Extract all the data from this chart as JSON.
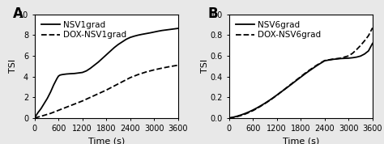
{
  "panel_A": {
    "label": "A",
    "xlabel": "Time (s)",
    "ylabel": "TSI",
    "xlim": [
      0,
      3600
    ],
    "ylim": [
      0,
      10
    ],
    "xticks": [
      0,
      600,
      1200,
      1800,
      2400,
      3000,
      3600
    ],
    "yticks": [
      0,
      2,
      4,
      6,
      8,
      10
    ],
    "legend": [
      "NSV1grad",
      "DOX-NSV1grad"
    ],
    "nsv1grad_x": [
      0,
      80,
      160,
      240,
      320,
      400,
      480,
      560,
      600,
      640,
      700,
      800,
      900,
      1000,
      1100,
      1200,
      1300,
      1400,
      1500,
      1600,
      1700,
      1800,
      1900,
      2000,
      2100,
      2200,
      2300,
      2400,
      2500,
      2600,
      2700,
      2800,
      2900,
      3000,
      3100,
      3200,
      3300,
      3400,
      3500,
      3600
    ],
    "nsv1grad_y": [
      0,
      0.5,
      0.9,
      1.4,
      1.9,
      2.5,
      3.2,
      3.8,
      4.05,
      4.15,
      4.2,
      4.25,
      4.28,
      4.3,
      4.35,
      4.4,
      4.55,
      4.8,
      5.1,
      5.4,
      5.75,
      6.1,
      6.45,
      6.8,
      7.1,
      7.35,
      7.6,
      7.78,
      7.9,
      8.0,
      8.08,
      8.15,
      8.22,
      8.3,
      8.38,
      8.45,
      8.5,
      8.55,
      8.6,
      8.65
    ],
    "dox_nsv1grad_x": [
      0,
      200,
      400,
      600,
      800,
      1000,
      1200,
      1400,
      1600,
      1800,
      2000,
      2200,
      2400,
      2600,
      2800,
      3000,
      3200,
      3400,
      3600
    ],
    "dox_nsv1grad_y": [
      0,
      0.22,
      0.45,
      0.75,
      1.05,
      1.35,
      1.65,
      2.0,
      2.35,
      2.7,
      3.1,
      3.5,
      3.9,
      4.2,
      4.45,
      4.65,
      4.82,
      4.97,
      5.1
    ]
  },
  "panel_B": {
    "label": "B",
    "xlabel": "Time (s)",
    "ylabel": "TSI",
    "xlim": [
      0,
      3600
    ],
    "ylim": [
      0,
      1.0
    ],
    "xticks": [
      0,
      600,
      1200,
      1800,
      2400,
      3000,
      3600
    ],
    "yticks": [
      0.0,
      0.2,
      0.4,
      0.6,
      0.8,
      1.0
    ],
    "legend": [
      "NSV6grad",
      "DOX-NSV6grad"
    ],
    "nsv6grad_x": [
      0,
      100,
      200,
      300,
      400,
      500,
      600,
      700,
      800,
      900,
      1000,
      1100,
      1200,
      1300,
      1400,
      1500,
      1600,
      1700,
      1800,
      1900,
      2000,
      2200,
      2400,
      2600,
      2800,
      3000,
      3100,
      3200,
      3300,
      3400,
      3500,
      3600
    ],
    "nsv6grad_y": [
      0,
      0.008,
      0.018,
      0.03,
      0.044,
      0.06,
      0.078,
      0.098,
      0.12,
      0.143,
      0.168,
      0.194,
      0.222,
      0.25,
      0.278,
      0.307,
      0.336,
      0.366,
      0.395,
      0.424,
      0.452,
      0.505,
      0.553,
      0.566,
      0.574,
      0.578,
      0.582,
      0.588,
      0.598,
      0.618,
      0.648,
      0.72
    ],
    "dox_nsv6grad_x": [
      0,
      100,
      200,
      300,
      400,
      500,
      600,
      700,
      800,
      900,
      1000,
      1100,
      1200,
      1300,
      1400,
      1500,
      1600,
      1700,
      1800,
      1900,
      2000,
      2200,
      2400,
      2600,
      2800,
      3000,
      3100,
      3200,
      3300,
      3400,
      3500,
      3600
    ],
    "dox_nsv6grad_y": [
      0,
      0.006,
      0.014,
      0.025,
      0.038,
      0.054,
      0.072,
      0.093,
      0.116,
      0.14,
      0.165,
      0.192,
      0.22,
      0.25,
      0.28,
      0.31,
      0.34,
      0.37,
      0.4,
      0.43,
      0.458,
      0.51,
      0.555,
      0.568,
      0.578,
      0.6,
      0.625,
      0.66,
      0.7,
      0.745,
      0.795,
      0.87
    ]
  },
  "line_color": "#000000",
  "background_color": "#e8e8e8",
  "plot_bg_color": "#ffffff",
  "fontsize_labels": 8,
  "fontsize_ticks": 7,
  "fontsize_legend": 7.5,
  "fontsize_panel_label": 12
}
